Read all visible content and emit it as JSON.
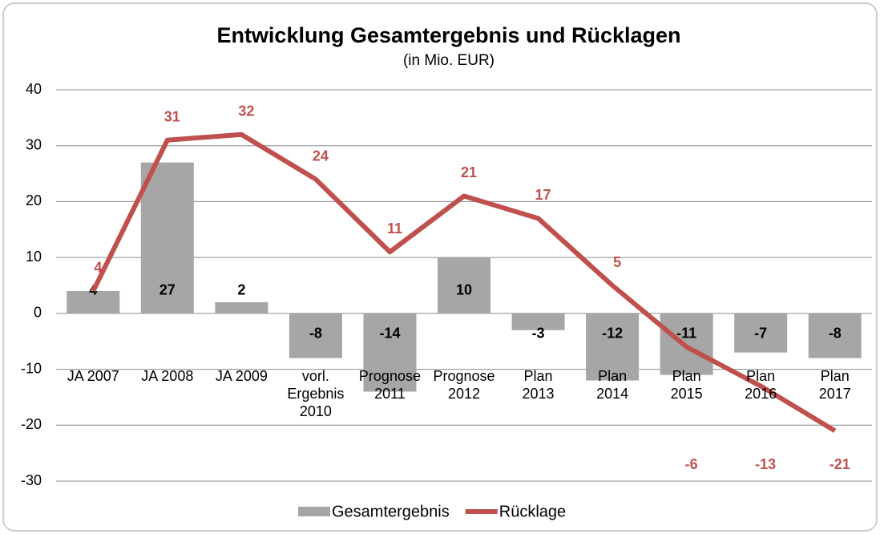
{
  "chart_data": {
    "type": "combo",
    "title": "Entwicklung Gesamtergebnis und Rücklagen",
    "subtitle": "(in Mio. EUR)",
    "categories": [
      [
        "JA 2007"
      ],
      [
        "JA 2008"
      ],
      [
        "JA 2009"
      ],
      [
        "vorl.",
        "Ergebnis",
        "2010"
      ],
      [
        "Prognose",
        "2011"
      ],
      [
        "Prognose",
        "2012"
      ],
      [
        "Plan",
        "2013"
      ],
      [
        "Plan",
        "2014"
      ],
      [
        "Plan",
        "2015"
      ],
      [
        "Plan",
        "2016"
      ],
      [
        "Plan",
        "2017"
      ]
    ],
    "series": [
      {
        "name": "Gesamtergebnis",
        "type": "bar",
        "color": "#a6a6a6",
        "values": [
          4,
          27,
          2,
          -8,
          -14,
          10,
          -3,
          -12,
          -11,
          -7,
          -8
        ]
      },
      {
        "name": "Rücklage",
        "type": "line",
        "color": "#c0504d",
        "values": [
          4,
          31,
          32,
          24,
          11,
          21,
          17,
          5,
          -6,
          -13,
          -21
        ]
      }
    ],
    "ylim": [
      -30,
      40
    ],
    "yticks": [
      -30,
      -20,
      -10,
      0,
      10,
      20,
      30,
      40
    ],
    "grid": true,
    "legend": "bottom"
  }
}
